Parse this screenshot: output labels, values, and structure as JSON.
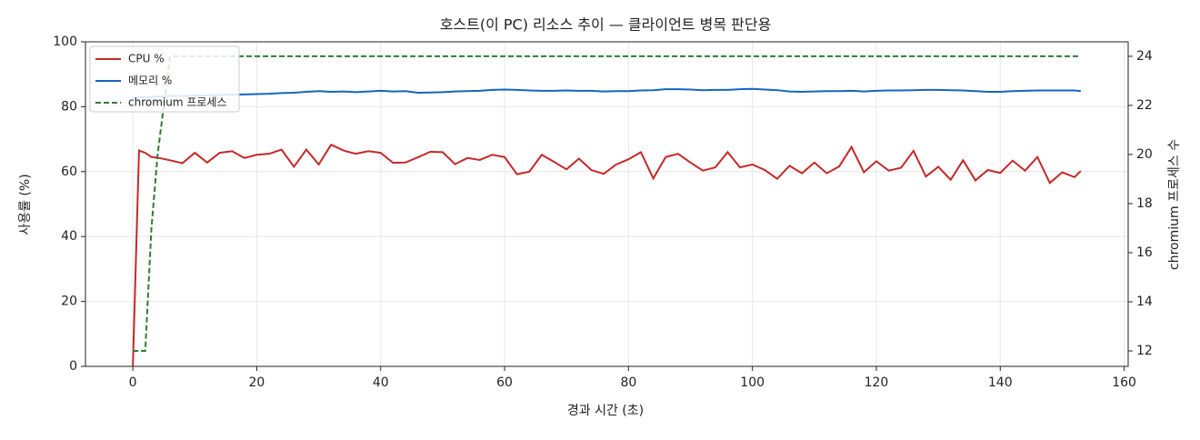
{
  "chart_data": {
    "type": "line",
    "title": "호스트(이 PC) 리소스 추이 — 클라이언트 병목 판단용",
    "xlabel": "경과 시간 (초)",
    "ylabel": "사용률 (%)",
    "y2label": "chromium 프로세스 수",
    "x": [
      0,
      1,
      2,
      3,
      4,
      6,
      8,
      10,
      12,
      14,
      16,
      18,
      20,
      22,
      24,
      26,
      28,
      30,
      32,
      34,
      36,
      38,
      40,
      42,
      44,
      46,
      48,
      50,
      52,
      54,
      56,
      58,
      60,
      62,
      64,
      66,
      68,
      70,
      72,
      74,
      76,
      78,
      80,
      82,
      84,
      86,
      88,
      90,
      92,
      94,
      96,
      98,
      100,
      102,
      104,
      106,
      108,
      110,
      112,
      114,
      116,
      118,
      120,
      122,
      124,
      126,
      128,
      130,
      132,
      134,
      136,
      138,
      140,
      142,
      144,
      146,
      148,
      150,
      152,
      153
    ],
    "series": [
      {
        "name": "CPU %",
        "color": "#c62828",
        "linestyle": "solid",
        "values": [
          0,
          66.5,
          65.8,
          64.5,
          64.3,
          63.5,
          62.6,
          65.8,
          62.8,
          65.8,
          66.3,
          64.2,
          65.2,
          65.5,
          66.8,
          61.5,
          66.8,
          62.2,
          68.3,
          66.5,
          65.5,
          66.3,
          65.8,
          62.7,
          62.8,
          64.4,
          66.1,
          66,
          62.3,
          64.2,
          63.6,
          65.2,
          64.5,
          59.2,
          60,
          65.2,
          63,
          60.7,
          64,
          60.5,
          59.3,
          62.2,
          63.8,
          66,
          57.9,
          64.5,
          65.5,
          62.8,
          60.3,
          61.3,
          66,
          61.3,
          62.2,
          60.5,
          57.8,
          61.8,
          59.5,
          62.8,
          59.5,
          61.6,
          67.6,
          59.8,
          63.2,
          60.3,
          61.2,
          66.4,
          58.5,
          61.5,
          57.5,
          63.5,
          57.3,
          60.5,
          59.6,
          63.4,
          60.3,
          64.5,
          56.5,
          59.8,
          58.3,
          60.2
        ]
      },
      {
        "name": "메모리 %",
        "color": "#1565c0",
        "linestyle": "solid",
        "values": [
          82.5,
          83,
          83,
          83,
          83.2,
          83.3,
          83.3,
          83.4,
          83.5,
          83.6,
          83.7,
          83.8,
          83.9,
          84,
          84.2,
          84.3,
          84.6,
          84.8,
          84.6,
          84.7,
          84.5,
          84.7,
          84.9,
          84.7,
          84.8,
          84.3,
          84.4,
          84.5,
          84.7,
          84.8,
          84.9,
          85.2,
          85.3,
          85.2,
          85,
          84.9,
          84.9,
          85,
          84.9,
          84.9,
          84.7,
          84.8,
          84.8,
          85,
          85.1,
          85.4,
          85.4,
          85.3,
          85.1,
          85.2,
          85.2,
          85.4,
          85.5,
          85.3,
          85.1,
          84.7,
          84.6,
          84.7,
          84.8,
          84.8,
          84.9,
          84.7,
          84.9,
          85,
          85,
          85.1,
          85.2,
          85.2,
          85.1,
          85,
          84.8,
          84.6,
          84.6,
          84.8,
          84.9,
          85,
          85,
          85,
          85,
          84.8
        ]
      },
      {
        "name": "chromium 프로세스",
        "color": "#2e7d32",
        "linestyle": "dashed",
        "axis": "y2",
        "values": [
          12,
          12,
          12,
          17,
          20,
          24,
          24,
          24,
          24,
          24,
          24,
          24,
          24,
          24,
          24,
          24,
          24,
          24,
          24,
          24,
          24,
          24,
          24,
          24,
          24,
          24,
          24,
          24,
          24,
          24,
          24,
          24,
          24,
          24,
          24,
          24,
          24,
          24,
          24,
          24,
          24,
          24,
          24,
          24,
          24,
          24,
          24,
          24,
          24,
          24,
          24,
          24,
          24,
          24,
          24,
          24,
          24,
          24,
          24,
          24,
          24,
          24,
          24,
          24,
          24,
          24,
          24,
          24,
          24,
          24,
          24,
          24,
          24,
          24,
          24,
          24,
          24,
          24,
          24,
          24
        ]
      }
    ],
    "xlim": [
      -7.65,
      160.65
    ],
    "xticks": [
      0,
      20,
      40,
      60,
      80,
      100,
      120,
      140,
      160
    ],
    "ylim": [
      0,
      100
    ],
    "yticks": [
      0,
      20,
      40,
      60,
      80,
      100
    ],
    "y2lim": [
      11.37,
      24.59
    ],
    "y2ticks": [
      12,
      14,
      16,
      18,
      20,
      22,
      24
    ],
    "grid": true,
    "legend": "upper left"
  }
}
